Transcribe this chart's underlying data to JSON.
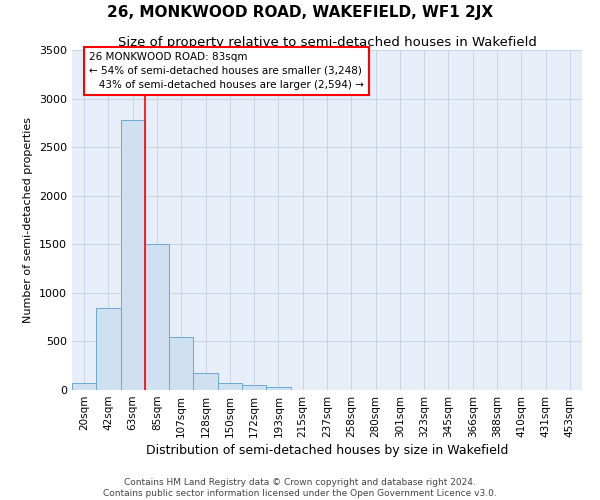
{
  "title": "26, MONKWOOD ROAD, WAKEFIELD, WF1 2JX",
  "subtitle": "Size of property relative to semi-detached houses in Wakefield",
  "xlabel": "Distribution of semi-detached houses by size in Wakefield",
  "ylabel": "Number of semi-detached properties",
  "footer_line1": "Contains HM Land Registry data © Crown copyright and database right 2024.",
  "footer_line2": "Contains public sector information licensed under the Open Government Licence v3.0.",
  "bar_labels": [
    "20sqm",
    "42sqm",
    "63sqm",
    "85sqm",
    "107sqm",
    "128sqm",
    "150sqm",
    "172sqm",
    "193sqm",
    "215sqm",
    "237sqm",
    "258sqm",
    "280sqm",
    "301sqm",
    "323sqm",
    "345sqm",
    "366sqm",
    "388sqm",
    "410sqm",
    "431sqm",
    "453sqm"
  ],
  "bar_values": [
    70,
    840,
    2780,
    1500,
    550,
    175,
    70,
    50,
    30,
    0,
    0,
    0,
    0,
    0,
    0,
    0,
    0,
    0,
    0,
    0,
    0
  ],
  "bar_color": "#cfe0f0",
  "bar_edge_color": "#6aaad4",
  "vline_x": 2.5,
  "annotation_text_line1": "26 MONKWOOD ROAD: 83sqm",
  "annotation_text_line2": "← 54% of semi-detached houses are smaller (3,248)",
  "annotation_text_line3": "   43% of semi-detached houses are larger (2,594) →",
  "annotation_box_color": "white",
  "annotation_box_edge_color": "red",
  "vline_color": "red",
  "ylim": [
    0,
    3500
  ],
  "grid_color": "#c8d4e8",
  "background_color": "#e8eef8",
  "title_fontsize": 11,
  "subtitle_fontsize": 9.5,
  "xlabel_fontsize": 9,
  "ylabel_fontsize": 8,
  "tick_fontsize": 7.5,
  "annotation_fontsize": 7.5,
  "footer_fontsize": 6.5
}
